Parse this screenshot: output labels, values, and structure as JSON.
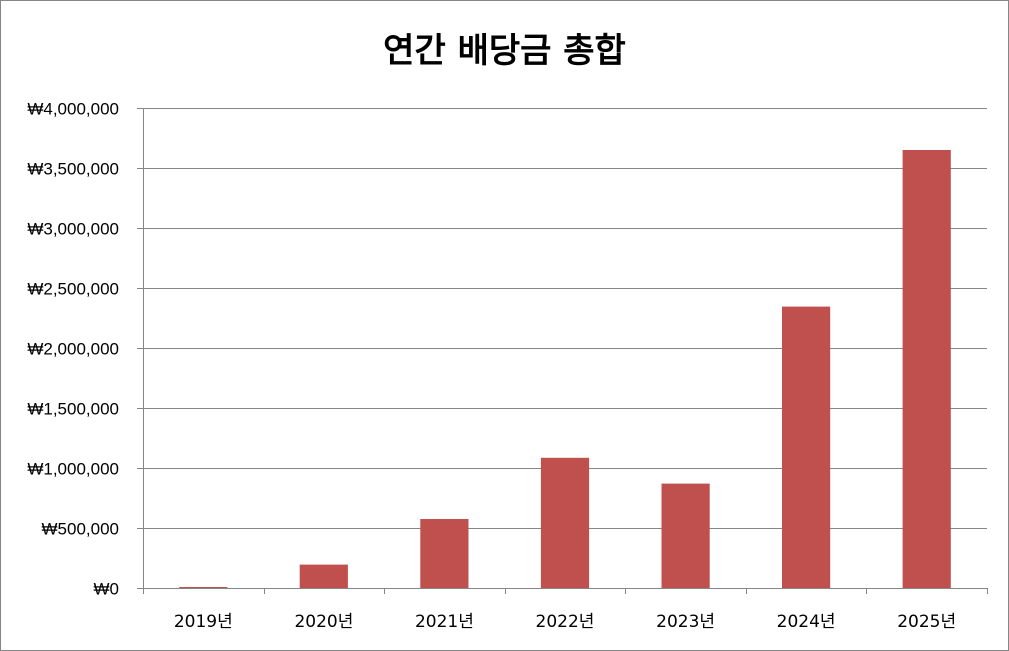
{
  "chart_data": {
    "type": "bar",
    "title": "연간 배당금 총합",
    "xlabel": "",
    "ylabel": "",
    "categories": [
      "2019년",
      "2020년",
      "2021년",
      "2022년",
      "2023년",
      "2024년",
      "2025년"
    ],
    "series": [
      {
        "values": [
          8000,
          195000,
          575000,
          1085000,
          870000,
          2345000,
          3650000
        ]
      }
    ],
    "ylim": [
      0,
      4000000
    ],
    "yticks": [
      0,
      500000,
      1000000,
      1500000,
      2000000,
      2500000,
      3000000,
      3500000,
      4000000
    ],
    "ytick_labels": [
      "₩0",
      "₩500,000",
      "₩1,000,000",
      "₩1,500,000",
      "₩2,000,000",
      "₩2,500,000",
      "₩3,000,000",
      "₩3,500,000",
      "₩4,000,000"
    ],
    "grid": true,
    "legend": "none",
    "colors": {
      "bar": "#c0504d",
      "grid": "#868686",
      "axis": "#868686"
    }
  }
}
